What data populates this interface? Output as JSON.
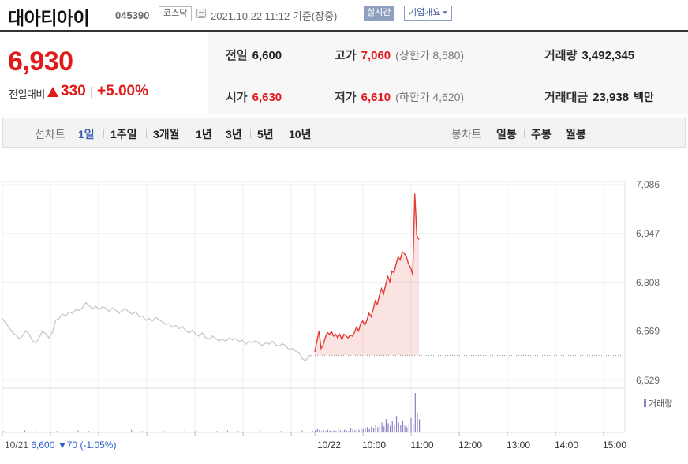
{
  "header": {
    "name": "대아티아이",
    "code": "045390",
    "market": "코스닥",
    "datetime": "2021.10.22 11:12",
    "basis": "기준(장중)",
    "realtime_label": "실시간",
    "company_label": "기업개요"
  },
  "price": {
    "current": "6,930",
    "change_label": "전일대비",
    "change": "330",
    "change_pct": "+5.00%",
    "color_up": "#e01919"
  },
  "stats": {
    "prev_close": {
      "label": "전일",
      "value": "6,600"
    },
    "high": {
      "label": "고가",
      "value": "7,060",
      "sub": "(상한가 8,580)"
    },
    "volume": {
      "label": "거래량",
      "value": "3,492,345"
    },
    "open": {
      "label": "시가",
      "value": "6,630"
    },
    "low": {
      "label": "저가",
      "value": "6,610",
      "sub": "(하한가 4,620)"
    },
    "amount": {
      "label": "거래대금",
      "value": "23,938",
      "unit": "백만"
    }
  },
  "periods": {
    "line_label": "선차트",
    "line_items": [
      "1일",
      "1주일",
      "3개월",
      "1년",
      "3년",
      "5년",
      "10년"
    ],
    "active": "1일",
    "candle_label": "봉차트",
    "candle_items": [
      "일봉",
      "주봉",
      "월봉"
    ]
  },
  "chart_data": {
    "type": "line",
    "y_ticks": [
      "7,086",
      "6,947",
      "6,808",
      "6,669",
      "6,529"
    ],
    "ylim": [
      6529,
      7086
    ],
    "x_ticks": [
      "10/21",
      "10/22",
      "10:00",
      "11:00",
      "12:00",
      "13:00",
      "14:00",
      "15:00"
    ],
    "reference_price": 6600,
    "prev_day_series": {
      "color": "#c8c8c8",
      "values": [
        6705,
        6692,
        6680,
        6665,
        6658,
        6648,
        6655,
        6670,
        6660,
        6642,
        6635,
        6650,
        6668,
        6662,
        6650,
        6665,
        6700,
        6705,
        6718,
        6712,
        6725,
        6719,
        6730,
        6728,
        6735,
        6750,
        6742,
        6732,
        6740,
        6730,
        6738,
        6735,
        6725,
        6735,
        6729,
        6720,
        6728,
        6733,
        6722,
        6718,
        6724,
        6710,
        6712,
        6700,
        6705,
        6698,
        6708,
        6702,
        6695,
        6688,
        6690,
        6680,
        6685,
        6676,
        6682,
        6670,
        6664,
        6672,
        6660,
        6655,
        6664,
        6650,
        6646,
        6655,
        6648,
        6641,
        6647,
        6640,
        6650,
        6644,
        6648,
        6640,
        6643,
        6632,
        6640,
        6636,
        6642,
        6634,
        6628,
        6636,
        6632,
        6640,
        6630,
        6626,
        6633,
        6628,
        6615,
        6620,
        6612,
        6608,
        6590,
        6585,
        6600,
        6598
      ]
    },
    "today_series": {
      "color": "#e53935",
      "values": [
        6610,
        6640,
        6670,
        6620,
        6630,
        6650,
        6665,
        6660,
        6668,
        6655,
        6660,
        6650,
        6660,
        6645,
        6660,
        6655,
        6650,
        6658,
        6655,
        6665,
        6680,
        6670,
        6690,
        6698,
        6686,
        6700,
        6720,
        6710,
        6730,
        6755,
        6745,
        6770,
        6790,
        6775,
        6800,
        6825,
        6810,
        6840,
        6835,
        6860,
        6880,
        6872,
        6895,
        6890,
        6880,
        6860,
        6850,
        6830,
        7060,
        6940,
        6930
      ]
    },
    "volume_label": "거래량",
    "prev_volume": [
      2,
      1,
      3,
      2,
      1,
      2,
      1,
      3,
      2,
      1,
      2,
      1,
      4,
      2,
      1,
      2,
      1,
      3,
      2,
      1,
      2,
      3,
      2,
      1,
      2,
      1,
      2,
      1,
      3,
      2
    ],
    "today_volume": [
      3,
      5,
      4,
      2,
      3,
      2,
      4,
      3,
      2,
      3,
      2,
      5,
      3,
      2,
      4,
      3,
      2,
      6,
      4,
      3,
      5,
      4,
      7,
      5,
      6,
      8,
      5,
      9,
      7,
      12,
      8,
      10,
      15,
      9,
      20,
      14,
      10,
      18,
      12,
      25,
      15,
      12,
      18,
      10,
      8,
      14,
      22,
      12,
      60,
      30,
      20
    ],
    "volume_color": "#8b7fc7",
    "prev_summary": {
      "date": "10/21",
      "price": "6,600",
      "change": "70",
      "pct": "(-1.05%)"
    }
  }
}
